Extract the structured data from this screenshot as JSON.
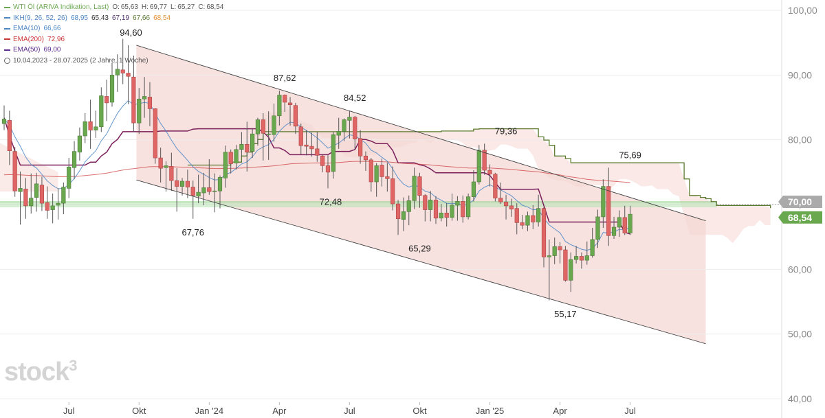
{
  "legend": {
    "title": "WTI Öl (ARIVA Indikation, Last)",
    "ohlc": [
      {
        "label": "O:",
        "value": "65,63"
      },
      {
        "label": "H:",
        "value": "69,77"
      },
      {
        "label": "L:",
        "value": "65,27"
      },
      {
        "label": "C:",
        "value": "68,54"
      }
    ],
    "ikh": {
      "label": "IKH(9, 26, 52, 26)",
      "values": [
        "68,95",
        "65,43",
        "67,19",
        "67,66",
        "68,54"
      ],
      "colors": [
        "#4a86c5",
        "#333333",
        "#4a2c6a",
        "#5a7a2e",
        "#e69138"
      ]
    },
    "ema10": {
      "label": "EMA(10)",
      "value": "66,66",
      "color": "#4a86c5"
    },
    "ema200": {
      "label": "EMA(200)",
      "value": "72,96",
      "color": "#cc3333"
    },
    "ema50": {
      "label": "EMA(50)",
      "value": "69,00",
      "color": "#5b2c8a"
    },
    "range": "10.04.2023 - 28.07.2025  (2 Jahre, 1 Woche)"
  },
  "watermark": {
    "text": "stock",
    "sup": "3"
  },
  "chart_data": {
    "type": "candlestick",
    "y_axis": {
      "ticks": [
        "100,00",
        "90,00",
        "80,00",
        "70,00",
        "60,00",
        "50,00",
        "40,00"
      ],
      "tick_values": [
        100,
        90,
        80,
        70,
        60,
        50,
        40
      ],
      "ylim": [
        37,
        102
      ],
      "position": "right"
    },
    "x_axis": {
      "labels": [
        "Jul",
        "Okt",
        "Jan '24",
        "Apr",
        "Jul",
        "Okt",
        "Jan '25",
        "Apr",
        "Jul"
      ],
      "label_weeks": [
        12,
        25,
        38,
        51,
        64,
        77,
        90,
        103,
        116
      ]
    },
    "week_range": [
      0,
      130
    ],
    "badges": [
      {
        "text": "70,00",
        "value": 70,
        "color": "#aaaaaa"
      },
      {
        "text": "68,54",
        "value": 68.54,
        "color": "#6aa84f"
      }
    ],
    "highlight_level": 70,
    "annotations": [
      {
        "text": "94,60",
        "week": 23.5,
        "value": 94.6
      },
      {
        "text": "87,62",
        "week": 52,
        "value": 87.62
      },
      {
        "text": "84,52",
        "week": 65,
        "value": 84.52
      },
      {
        "text": "79,36",
        "week": 93,
        "value": 79.36
      },
      {
        "text": "75,69",
        "week": 116,
        "value": 75.69
      },
      {
        "text": "72,48",
        "week": 60.5,
        "value": 72.48
      },
      {
        "text": "67,76",
        "week": 35,
        "value": 67.76
      },
      {
        "text": "65,29",
        "week": 77,
        "value": 65.29
      },
      {
        "text": "55,17",
        "week": 104,
        "value": 55.17
      }
    ],
    "channel": {
      "upper": [
        [
          24.5,
          94.6
        ],
        [
          130,
          67.5
        ]
      ],
      "lower": [
        [
          24.5,
          73.8
        ],
        [
          130,
          48.5
        ]
      ],
      "shade_start": 24.5,
      "shade_end": 130
    },
    "colors": {
      "up": "#6aa84f",
      "down": "#e06666",
      "cloud": "#f6d7d4",
      "channel": "#f3d6d3",
      "senkou_b": "#5a7a2e",
      "kijun": "#7a1f5a",
      "ema10": "#4a86c5",
      "ema200": "#cc3333"
    },
    "candles": [
      [
        82.5,
        85.3,
        81.5,
        83.2
      ],
      [
        83.0,
        84.5,
        76.1,
        78.3
      ],
      [
        78.2,
        78.9,
        71.2,
        72.1
      ],
      [
        72.0,
        75.1,
        66.9,
        72.5
      ],
      [
        72.4,
        74.1,
        67.8,
        69.8
      ],
      [
        69.8,
        74.8,
        68.6,
        71.0
      ],
      [
        71.1,
        74.9,
        68.9,
        73.2
      ],
      [
        73.0,
        74.3,
        69.0,
        70.2
      ],
      [
        70.3,
        72.8,
        67.8,
        69.1
      ],
      [
        69.2,
        71.7,
        67.1,
        69.8
      ],
      [
        69.9,
        72.5,
        67.7,
        70.2
      ],
      [
        70.2,
        73.4,
        68.5,
        72.7
      ],
      [
        72.5,
        77.2,
        71.0,
        75.8
      ],
      [
        75.7,
        79.8,
        73.9,
        78.2
      ],
      [
        78.1,
        81.9,
        76.8,
        80.6
      ],
      [
        80.6,
        84.1,
        79.5,
        82.8
      ],
      [
        82.8,
        86.2,
        78.6,
        81.5
      ],
      [
        81.5,
        84.5,
        80.3,
        82.0
      ],
      [
        82.0,
        88.1,
        81.2,
        86.8
      ],
      [
        86.7,
        89.3,
        82.9,
        85.7
      ],
      [
        85.8,
        91.9,
        85.1,
        90.0
      ],
      [
        90.0,
        93.2,
        87.4,
        90.9
      ],
      [
        90.8,
        95.6,
        88.6,
        90.3
      ],
      [
        90.3,
        94.6,
        85.5,
        89.8
      ],
      [
        89.7,
        93.0,
        81.2,
        82.6
      ],
      [
        82.6,
        88.0,
        80.9,
        86.3
      ],
      [
        86.3,
        89.7,
        83.4,
        86.7
      ],
      [
        86.6,
        88.9,
        82.1,
        84.8
      ],
      [
        84.8,
        84.9,
        76.3,
        77.2
      ],
      [
        77.2,
        78.8,
        73.4,
        75.6
      ],
      [
        75.7,
        76.7,
        72.0,
        76.0
      ],
      [
        75.9,
        78.0,
        72.1,
        73.7
      ],
      [
        73.7,
        75.6,
        68.9,
        72.8
      ],
      [
        72.8,
        74.1,
        71.4,
        73.6
      ],
      [
        73.6,
        75.4,
        71.0,
        72.7
      ],
      [
        72.7,
        73.7,
        67.8,
        71.4
      ],
      [
        71.3,
        74.6,
        70.2,
        71.9
      ],
      [
        71.8,
        74.9,
        69.9,
        72.6
      ],
      [
        72.6,
        77.0,
        71.5,
        72.0
      ],
      [
        72.1,
        74.8,
        68.8,
        72.1
      ],
      [
        72.1,
        74.5,
        69.4,
        74.2
      ],
      [
        74.1,
        79.1,
        72.6,
        78.1
      ],
      [
        78.1,
        78.5,
        74.8,
        76.3
      ],
      [
        76.4,
        79.2,
        75.4,
        78.5
      ],
      [
        78.5,
        81.2,
        77.4,
        79.3
      ],
      [
        79.3,
        82.8,
        75.1,
        78.1
      ],
      [
        78.2,
        81.7,
        77.2,
        80.9
      ],
      [
        80.9,
        83.4,
        79.1,
        83.1
      ],
      [
        83.1,
        84.1,
        76.8,
        81.0
      ],
      [
        80.9,
        84.4,
        76.9,
        80.9
      ],
      [
        80.8,
        85.6,
        79.7,
        83.7
      ],
      [
        83.7,
        87.6,
        82.2,
        86.9
      ],
      [
        86.9,
        87.0,
        84.3,
        85.8
      ],
      [
        85.7,
        86.6,
        82.2,
        85.4
      ],
      [
        85.3,
        85.7,
        80.9,
        82.1
      ],
      [
        82.0,
        82.5,
        77.8,
        79.1
      ],
      [
        79.2,
        81.5,
        77.6,
        79.0
      ],
      [
        79.0,
        81.1,
        77.4,
        78.6
      ],
      [
        78.6,
        81.2,
        76.6,
        77.6
      ],
      [
        77.5,
        77.8,
        75.0,
        76.0
      ],
      [
        76.0,
        77.6,
        72.5,
        75.0
      ],
      [
        75.1,
        81.2,
        74.0,
        80.8
      ],
      [
        80.7,
        83.4,
        78.6,
        81.3
      ],
      [
        81.3,
        83.3,
        79.8,
        83.1
      ],
      [
        83.0,
        84.5,
        80.2,
        83.5
      ],
      [
        83.5,
        83.7,
        78.5,
        80.1
      ],
      [
        80.2,
        81.5,
        76.3,
        77.5
      ],
      [
        77.5,
        78.2,
        75.2,
        76.9
      ],
      [
        76.9,
        77.2,
        72.0,
        73.5
      ],
      [
        73.5,
        76.4,
        71.2,
        76.0
      ],
      [
        76.1,
        77.1,
        72.8,
        74.3
      ],
      [
        74.3,
        76.5,
        72.0,
        74.0
      ],
      [
        74.0,
        75.9,
        69.1,
        70.1
      ],
      [
        70.1,
        70.7,
        65.3,
        67.8
      ],
      [
        67.7,
        71.1,
        65.9,
        68.9
      ],
      [
        68.9,
        71.4,
        66.8,
        70.6
      ],
      [
        70.6,
        75.7,
        69.3,
        74.4
      ],
      [
        74.3,
        74.9,
        69.5,
        71.4
      ],
      [
        71.4,
        71.6,
        67.4,
        69.2
      ],
      [
        69.2,
        72.1,
        67.4,
        70.7
      ],
      [
        70.7,
        71.3,
        67.0,
        67.9
      ],
      [
        67.9,
        70.1,
        67.4,
        68.7
      ],
      [
        68.7,
        70.2,
        66.6,
        68.0
      ],
      [
        68.0,
        71.7,
        67.5,
        69.9
      ],
      [
        69.9,
        71.3,
        67.5,
        70.5
      ],
      [
        70.5,
        71.4,
        67.2,
        68.1
      ],
      [
        68.1,
        71.7,
        67.7,
        71.2
      ],
      [
        71.2,
        75.3,
        70.5,
        73.5
      ],
      [
        73.5,
        79.2,
        73.1,
        78.4
      ],
      [
        78.4,
        79.4,
        74.6,
        75.3
      ],
      [
        75.3,
        76.2,
        72.8,
        74.7
      ],
      [
        74.7,
        74.9,
        70.5,
        71.0
      ],
      [
        71.0,
        73.4,
        70.1,
        70.4
      ],
      [
        70.4,
        71.5,
        67.7,
        69.8
      ],
      [
        69.8,
        70.9,
        68.1,
        69.3
      ],
      [
        69.4,
        70.2,
        65.4,
        67.2
      ],
      [
        67.2,
        68.4,
        66.2,
        66.8
      ],
      [
        66.8,
        68.9,
        65.9,
        68.3
      ],
      [
        68.3,
        69.9,
        66.2,
        67.3
      ],
      [
        67.3,
        71.5,
        66.6,
        69.4
      ],
      [
        69.4,
        69.6,
        60.3,
        61.9
      ],
      [
        61.9,
        64.6,
        55.2,
        62.1
      ],
      [
        62.1,
        64.9,
        60.8,
        63.5
      ],
      [
        63.5,
        64.2,
        60.9,
        63.0
      ],
      [
        63.0,
        63.6,
        58.1,
        58.3
      ],
      [
        58.3,
        62.6,
        56.5,
        61.5
      ],
      [
        61.5,
        63.6,
        60.9,
        62.0
      ],
      [
        62.0,
        62.6,
        60.1,
        61.4
      ],
      [
        61.4,
        64.3,
        60.7,
        62.1
      ],
      [
        62.1,
        66.4,
        61.8,
        64.6
      ],
      [
        64.6,
        69.2,
        63.3,
        68.1
      ],
      [
        68.1,
        73.9,
        66.4,
        72.8
      ],
      [
        72.8,
        75.7,
        63.6,
        65.2
      ],
      [
        65.2,
        68.1,
        64.7,
        66.5
      ],
      [
        66.5,
        69.1,
        65.0,
        68.0
      ],
      [
        68.0,
        69.8,
        65.3,
        65.6
      ],
      [
        65.6,
        69.8,
        65.3,
        68.5
      ]
    ]
  }
}
